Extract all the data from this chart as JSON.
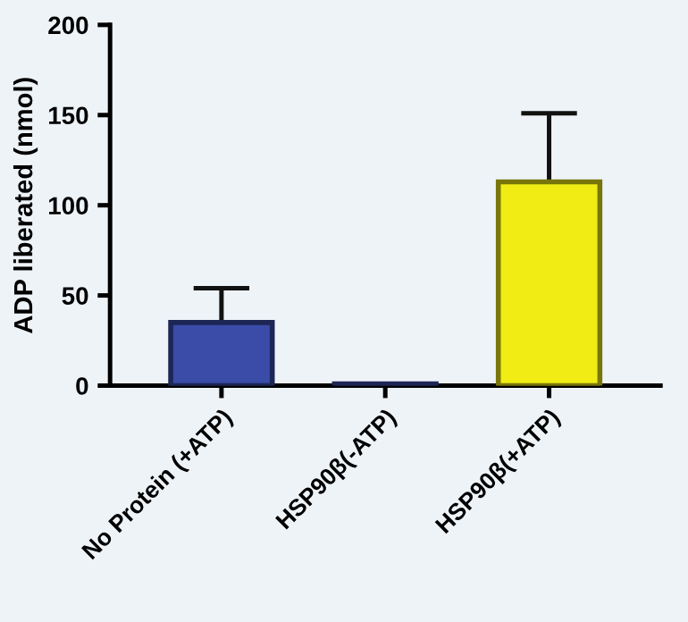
{
  "chart_data": {
    "type": "bar",
    "ylabel": "ADP liberated (nmol)",
    "categories": [
      "No Protein (+ATP)",
      "HSP90β(-ATP)",
      "HSP90β(+ATP)"
    ],
    "values": [
      35,
      1,
      113
    ],
    "errors": [
      [
        35,
        54
      ],
      null,
      [
        113,
        151
      ]
    ],
    "colors": [
      "#3a4ba8",
      "#3a4ba8",
      "#f0ec14"
    ],
    "ylim": [
      0,
      200
    ],
    "yticks": [
      0,
      50,
      100,
      150,
      200
    ],
    "grid": false,
    "legend": false
  }
}
